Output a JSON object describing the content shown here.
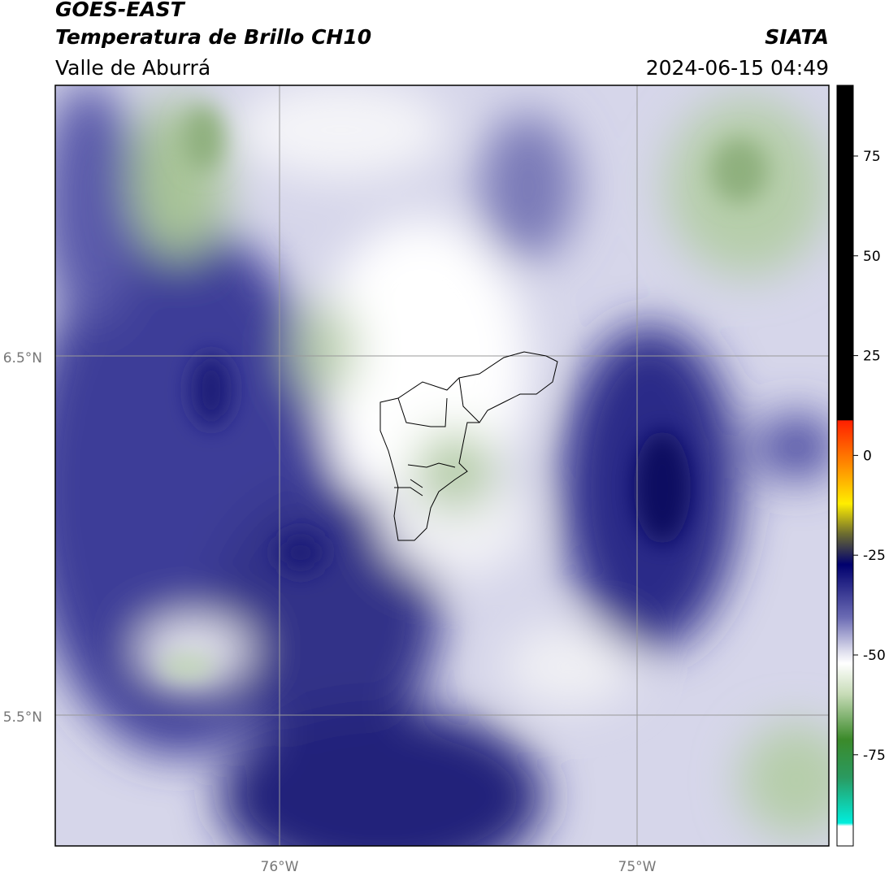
{
  "header": {
    "title": "GOES-EAST",
    "subtitle": "Temperatura de Brillo CH10",
    "region": "Valle de Aburrá",
    "agency": "SIATA",
    "timestamp": "2024-06-15 04:49"
  },
  "map": {
    "lat_labels": [
      "6.5°N",
      "5.5°N"
    ],
    "lon_labels": [
      "76°W",
      "75°W"
    ]
  },
  "colorbar": {
    "ticks": [
      "75",
      "50",
      "25",
      "0",
      "-25",
      "-50",
      "-75"
    ]
  }
}
